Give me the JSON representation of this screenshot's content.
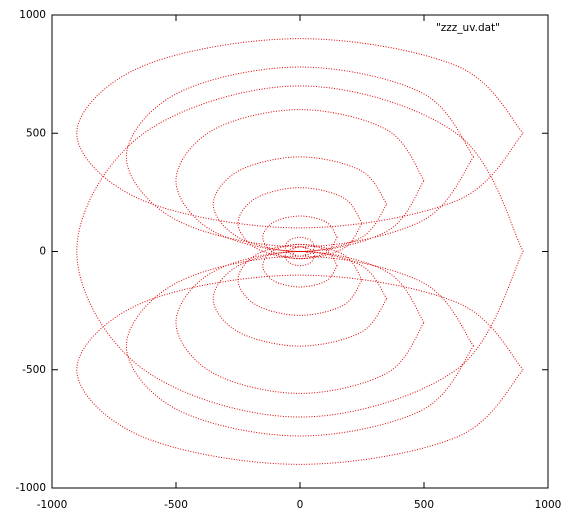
{
  "chart_data": {
    "type": "line",
    "xlim": [
      -1000,
      1000
    ],
    "ylim": [
      -1000,
      1000
    ],
    "xticks": [
      -1000,
      -500,
      0,
      500,
      1000
    ],
    "yticks": [
      -1000,
      -500,
      0,
      500,
      1000
    ],
    "grid": false,
    "legend": "top-right",
    "series": [
      {
        "name": "\"zzz_uv.dat\"",
        "color": "#e00000",
        "x": [
          30,
          21,
          0,
          -21,
          -30,
          -21,
          0,
          21,
          30,
          null,
          60,
          42,
          0,
          -42,
          -60,
          -42,
          0,
          42,
          60,
          null,
          60,
          42,
          0,
          -42,
          -60,
          -42,
          0,
          42,
          60,
          null,
          150,
          106,
          0,
          -106,
          -150,
          -106,
          0,
          106,
          150,
          null,
          150,
          106,
          0,
          -106,
          -150,
          -106,
          0,
          106,
          150,
          null,
          250,
          177,
          0,
          -177,
          -250,
          -177,
          0,
          177,
          250,
          null,
          250,
          177,
          0,
          -177,
          -250,
          -177,
          0,
          177,
          250,
          null,
          350,
          247,
          0,
          -247,
          -350,
          -247,
          0,
          247,
          350,
          null,
          350,
          247,
          0,
          -247,
          -350,
          -247,
          0,
          247,
          350,
          null,
          500,
          354,
          0,
          -354,
          -500,
          -354,
          0,
          354,
          500,
          null,
          500,
          354,
          0,
          -354,
          -500,
          -354,
          0,
          354,
          500,
          null,
          700,
          495,
          0,
          -495,
          -700,
          -495,
          0,
          495,
          700,
          null,
          700,
          495,
          0,
          -495,
          -700,
          -495,
          0,
          495,
          700,
          null,
          900,
          636,
          0,
          -636,
          -900,
          -636,
          0,
          636,
          900,
          null,
          900,
          636,
          0,
          -636,
          -900,
          -636,
          0,
          636,
          900,
          null,
          900,
          636,
          0,
          -636,
          -900,
          -636,
          0,
          636,
          900
        ],
        "y": [
          0,
          14,
          20,
          14,
          0,
          -14,
          -20,
          -14,
          0,
          null,
          20,
          48,
          60,
          48,
          20,
          -8,
          -20,
          -8,
          20,
          null,
          -20,
          8,
          20,
          8,
          -20,
          -48,
          -60,
          -48,
          -20,
          null,
          60,
          124,
          150,
          124,
          60,
          -4,
          -30,
          -4,
          60,
          null,
          -60,
          4,
          30,
          4,
          -60,
          -124,
          -150,
          -124,
          -60,
          null,
          120,
          226,
          270,
          226,
          120,
          14,
          -30,
          14,
          120,
          null,
          -120,
          -14,
          30,
          -14,
          -120,
          -226,
          -270,
          -226,
          -120,
          null,
          200,
          341,
          400,
          341,
          200,
          59,
          0,
          59,
          200,
          null,
          -200,
          -59,
          0,
          -59,
          -200,
          -341,
          -400,
          -341,
          -200,
          null,
          300,
          512,
          600,
          512,
          300,
          88,
          0,
          88,
          300,
          null,
          -300,
          -88,
          0,
          -88,
          -300,
          -512,
          -600,
          -512,
          -300,
          null,
          400,
          669,
          780,
          669,
          400,
          131,
          20,
          131,
          400,
          null,
          -400,
          -131,
          -20,
          -131,
          -400,
          -669,
          -780,
          -669,
          -400,
          null,
          0,
          495,
          700,
          495,
          0,
          -495,
          -700,
          -495,
          0,
          null,
          500,
          783,
          900,
          783,
          500,
          217,
          100,
          217,
          500,
          null,
          -500,
          -217,
          -100,
          -217,
          -500,
          -783,
          -900,
          -783,
          -500
        ]
      }
    ]
  }
}
